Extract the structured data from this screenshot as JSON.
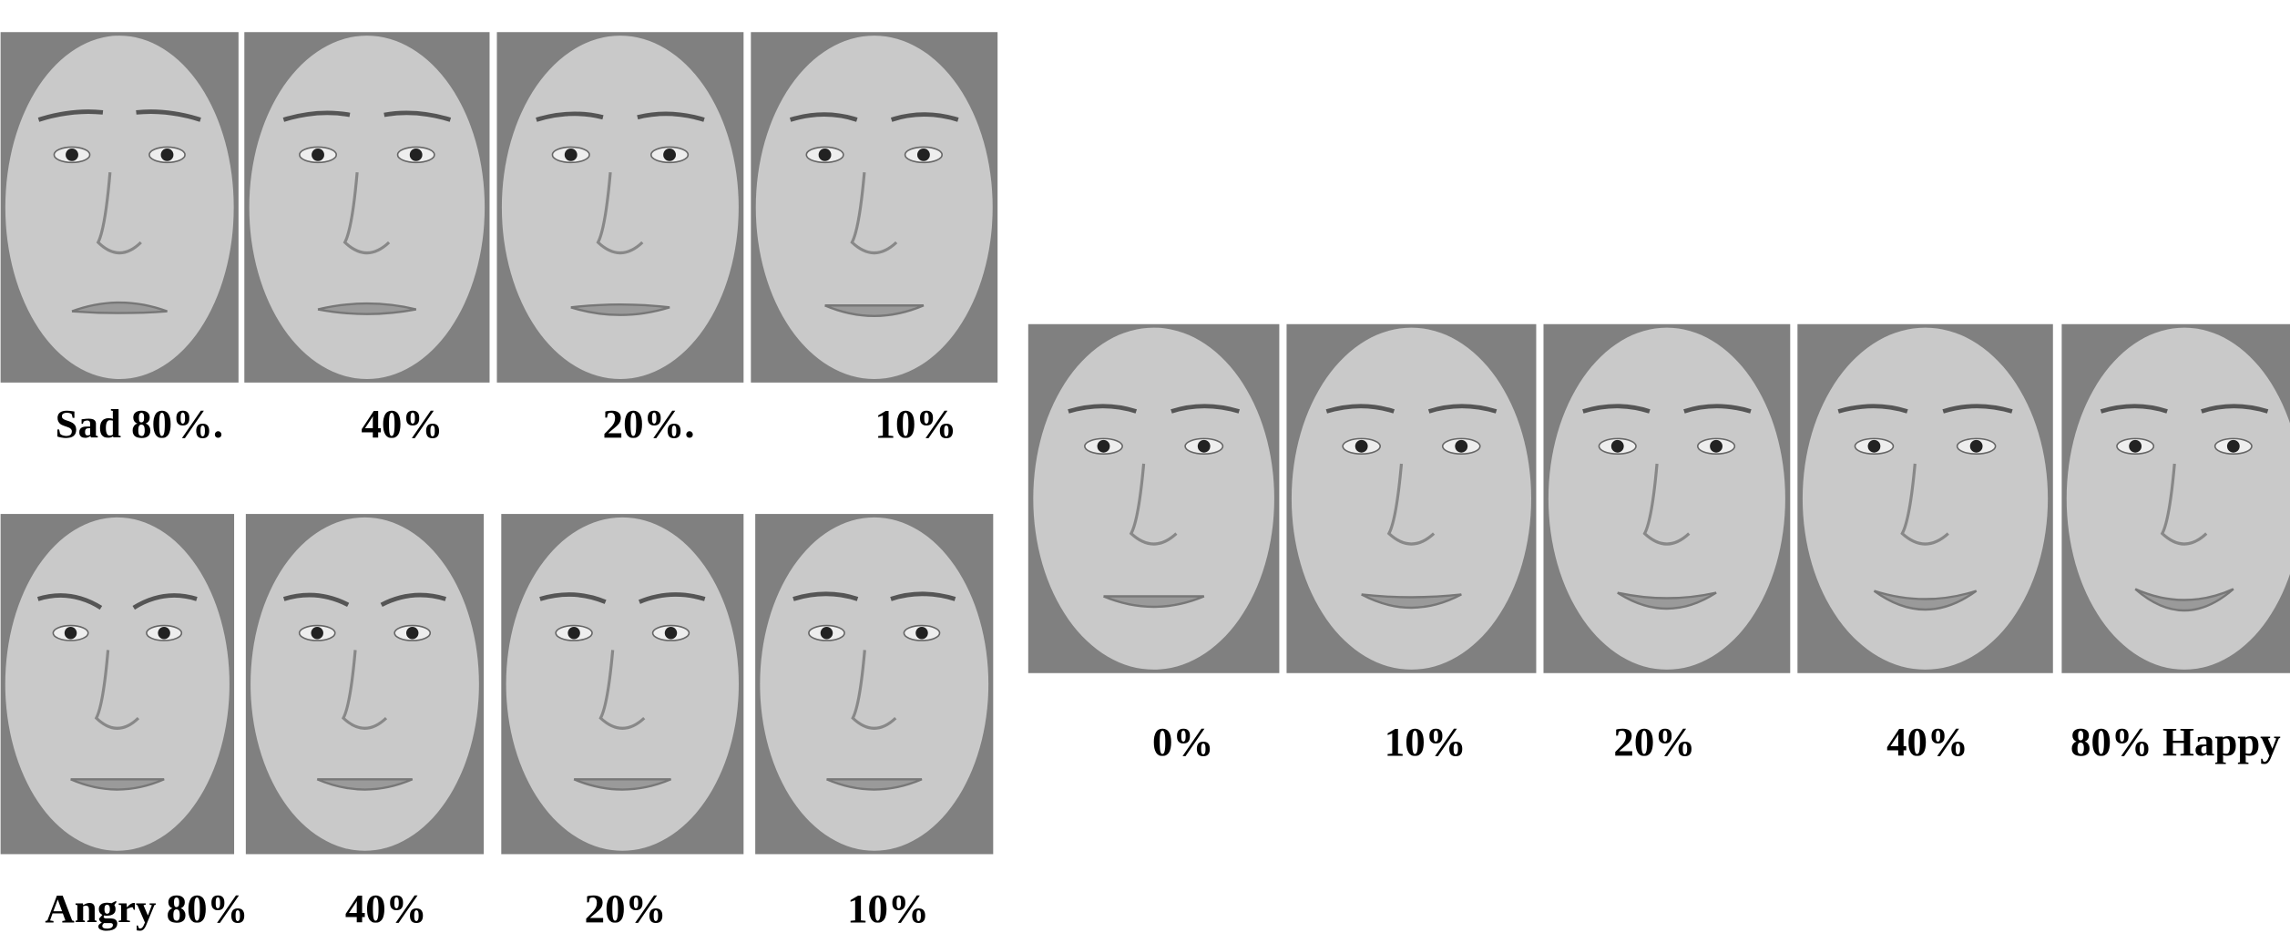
{
  "rows": [
    {
      "labels": [
        "Sad 80%.",
        "40%",
        "20%.",
        "10%"
      ]
    },
    {
      "labels": [
        "Angry 80%",
        "40%",
        "20%",
        "10%"
      ]
    },
    {
      "labels": [
        "0%",
        "10%",
        "20%",
        "40%",
        "80% Happy"
      ]
    }
  ]
}
